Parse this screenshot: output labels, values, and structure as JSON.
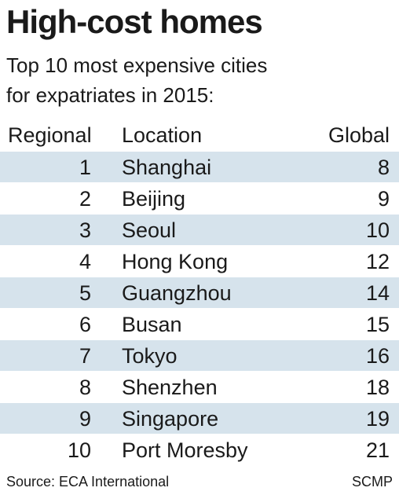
{
  "title": "High-cost homes",
  "subtitle_line1": "Top 10 most expensive cities",
  "subtitle_line2": "for expatriates in 2015:",
  "colors": {
    "row_shade": "#d6e3ec",
    "text": "#1a1a1a",
    "background": "#ffffff"
  },
  "chart_data": {
    "type": "table",
    "columns": [
      "Regional",
      "Location",
      "Global"
    ],
    "rows": [
      {
        "regional": "1",
        "location": "Shanghai",
        "global": "8"
      },
      {
        "regional": "2",
        "location": "Beijing",
        "global": "9"
      },
      {
        "regional": "3",
        "location": "Seoul",
        "global": "10"
      },
      {
        "regional": "4",
        "location": "Hong Kong",
        "global": "12"
      },
      {
        "regional": "5",
        "location": "Guangzhou",
        "global": "14"
      },
      {
        "regional": "6",
        "location": "Busan",
        "global": "15"
      },
      {
        "regional": "7",
        "location": "Tokyo",
        "global": "16"
      },
      {
        "regional": "8",
        "location": "Shenzhen",
        "global": "18"
      },
      {
        "regional": "9",
        "location": "Singapore",
        "global": "19"
      },
      {
        "regional": "10",
        "location": "Port Moresby",
        "global": "21"
      }
    ]
  },
  "footer": {
    "source": "Source: ECA International",
    "credit": "SCMP"
  }
}
